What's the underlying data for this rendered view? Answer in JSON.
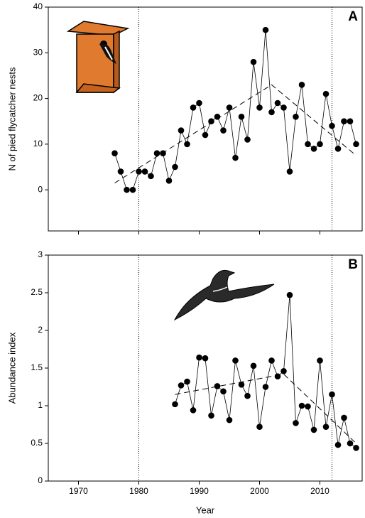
{
  "chart_data": [
    {
      "type": "line",
      "panel": "A",
      "ylabel": "N of pied flycatcher nests",
      "color": "#000000",
      "xlim": [
        1965,
        2017
      ],
      "xticks": [
        1970,
        1980,
        1990,
        2000,
        2010
      ],
      "show_xtick_labels": false,
      "ylim": [
        -9,
        40
      ],
      "yticks": [
        0,
        10,
        20,
        30,
        40
      ],
      "vlines": [
        1980,
        2012
      ],
      "x": [
        1976,
        1977,
        1978,
        1979,
        1980,
        1981,
        1982,
        1983,
        1984,
        1985,
        1986,
        1987,
        1988,
        1989,
        1990,
        1991,
        1992,
        1993,
        1994,
        1995,
        1996,
        1997,
        1998,
        1999,
        2000,
        2001,
        2002,
        2003,
        2004,
        2005,
        2006,
        2007,
        2008,
        2009,
        2010,
        2011,
        2012,
        2013,
        2014,
        2015,
        2016
      ],
      "values": [
        8,
        4,
        0,
        0,
        4,
        4,
        3,
        8,
        8,
        2,
        5,
        13,
        10,
        18,
        19,
        12,
        15,
        16,
        13,
        18,
        7,
        16,
        11,
        28,
        18,
        35,
        17,
        19,
        18,
        4,
        16,
        23,
        10,
        9,
        10,
        21,
        14,
        9,
        15,
        15,
        10
      ],
      "trend": {
        "x": [
          1976,
          2002,
          2016
        ],
        "values": [
          1.5,
          23,
          7.5
        ]
      }
    },
    {
      "type": "line",
      "panel": "B",
      "ylabel": "Abundance index",
      "xlabel": "Year",
      "color": "#000000",
      "xlim": [
        1965,
        2017
      ],
      "xticks": [
        1970,
        1980,
        1990,
        2000,
        2010
      ],
      "show_xtick_labels": true,
      "ylim": [
        0,
        3
      ],
      "yticks": [
        0,
        0.5,
        1,
        1.5,
        2,
        2.5,
        3
      ],
      "vlines": [
        1980,
        2012
      ],
      "x": [
        1986,
        1987,
        1988,
        1989,
        1990,
        1991,
        1992,
        1993,
        1994,
        1995,
        1996,
        1997,
        1998,
        1999,
        2000,
        2001,
        2002,
        2003,
        2004,
        2005,
        2006,
        2007,
        2008,
        2009,
        2010,
        2011,
        2012,
        2013,
        2014,
        2015,
        2016
      ],
      "values": [
        1.02,
        1.27,
        1.32,
        0.94,
        1.64,
        1.63,
        0.87,
        1.26,
        1.19,
        0.81,
        1.6,
        1.28,
        1.13,
        1.53,
        0.72,
        1.25,
        1.6,
        1.39,
        1.46,
        2.47,
        0.77,
        1.0,
        0.99,
        0.68,
        1.6,
        0.72,
        1.15,
        0.48,
        0.84,
        0.5,
        0.44
      ],
      "trend": {
        "x": [
          1986,
          2004,
          2016
        ],
        "values": [
          1.15,
          1.42,
          0.5
        ]
      }
    }
  ]
}
